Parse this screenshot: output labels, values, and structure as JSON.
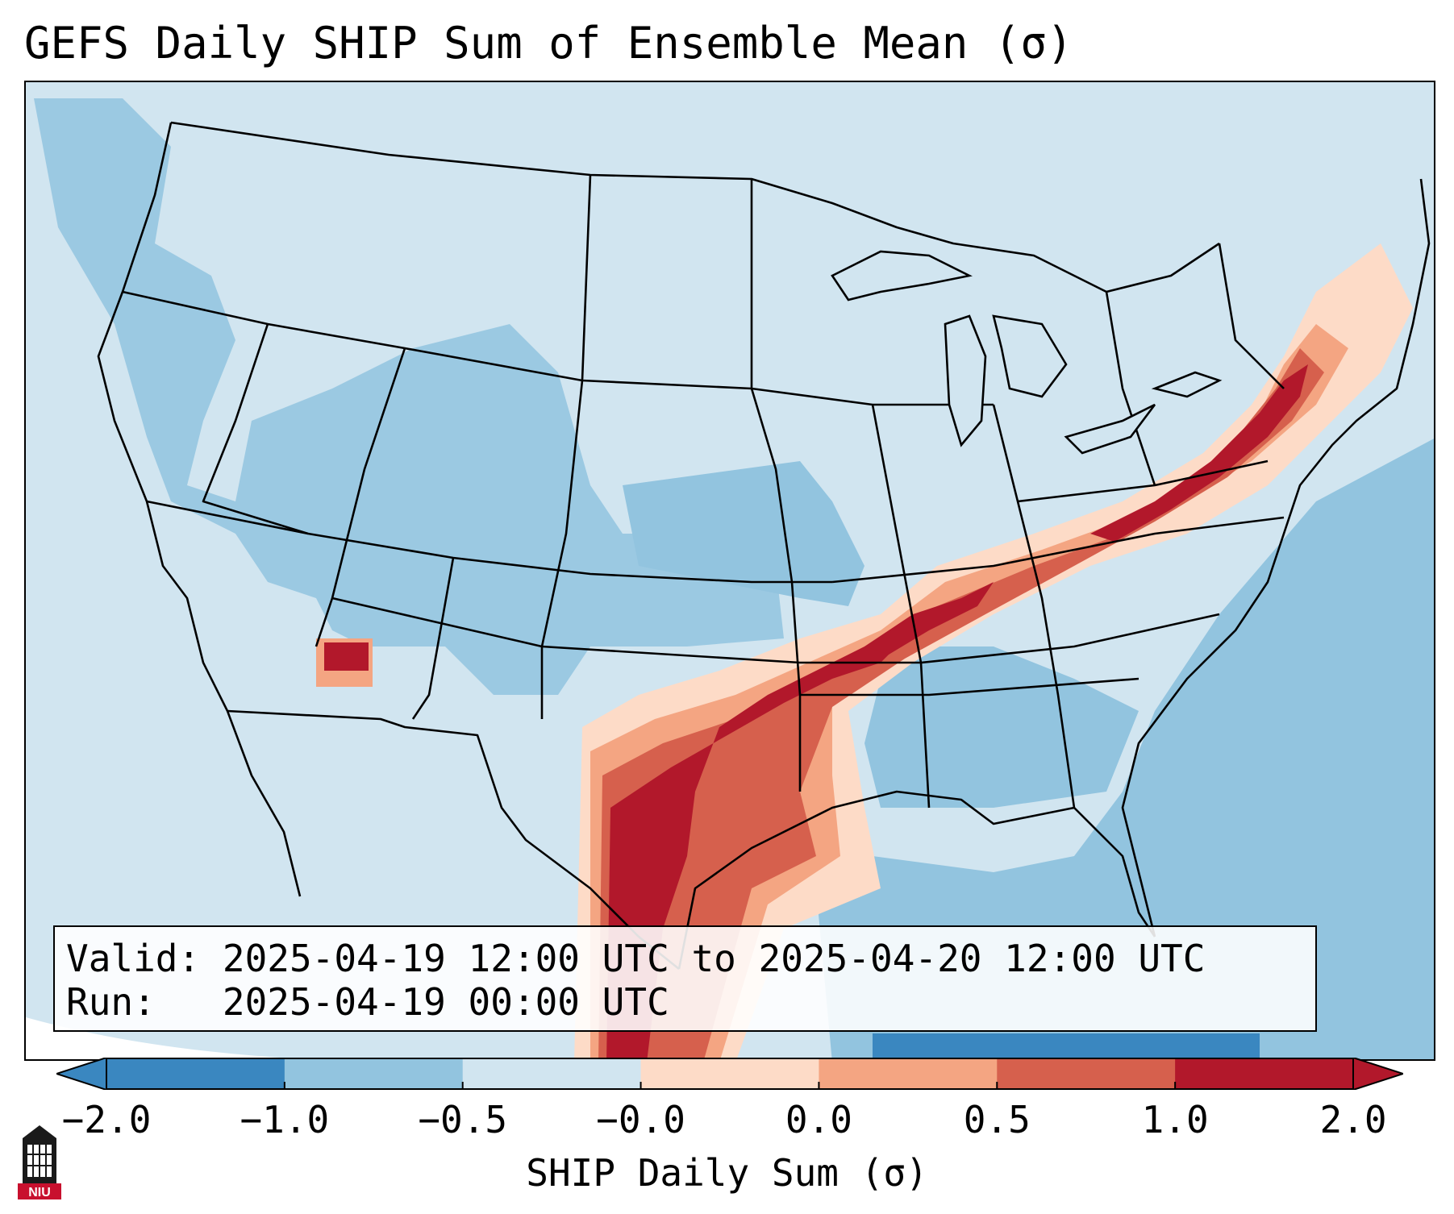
{
  "title": "GEFS Daily SHIP Sum of Ensemble Mean (σ)",
  "info": {
    "valid_label": "Valid:",
    "valid_value": "2025-04-19 12:00 UTC to 2025-04-20 12:00 UTC",
    "run_label": "Run:",
    "run_value": "2025-04-19 00:00 UTC"
  },
  "colorbar": {
    "label": "SHIP Daily Sum (σ)",
    "ticks": [
      "−2.0",
      "−1.0",
      "−0.5",
      "−0.0",
      "0.0",
      "0.5",
      "1.0",
      "2.0"
    ],
    "colors": [
      "#3a87c0",
      "#92c4df",
      "#d1e5f0",
      "#fddbc7",
      "#f4a582",
      "#d6604d",
      "#b2182b"
    ],
    "extend": "both"
  },
  "legend_colors": {
    "ocean_deep": "#3a87c0",
    "low": "#92c4df",
    "neutral_cool": "#d1e5f0",
    "neutral_warm": "#fddbc7",
    "moderate": "#f4a582",
    "high": "#d6604d",
    "very_high": "#b2182b"
  },
  "logo": {
    "text": "NIU",
    "color": "#c8102e"
  }
}
